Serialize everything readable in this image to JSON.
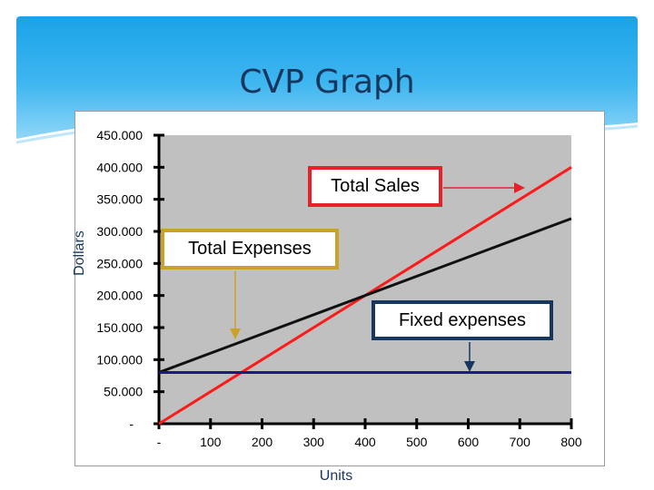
{
  "slide": {
    "title": "CVP Graph"
  },
  "colors": {
    "plot_background": "#c0c0c0",
    "total_sales": "#ff1a1a",
    "total_expenses": "#111111",
    "fixed_expenses": "#1a1a80",
    "sales_callout_border": "#e8202a",
    "expenses_callout_border": "#c9a227",
    "fixed_callout_border": "#17375e",
    "expenses_arrow": "#c9a227",
    "fixed_arrow": "#17375e",
    "sales_arrow": "#e8202a"
  },
  "chart_data": {
    "type": "line",
    "xlabel": "Units",
    "ylabel": "Dollars",
    "xlim": [
      0,
      800
    ],
    "ylim": [
      0,
      450000
    ],
    "x_ticks": [
      "-",
      "100",
      "200",
      "300",
      "400",
      "500",
      "600",
      "700",
      "800"
    ],
    "y_ticks": [
      "-",
      "50.000",
      "100.000",
      "150.000",
      "200.000",
      "250.000",
      "300.000",
      "350.000",
      "400.000",
      "450.000"
    ],
    "grid": false,
    "series": [
      {
        "name": "Total Sales",
        "x": [
          0,
          800
        ],
        "y": [
          0,
          400000
        ]
      },
      {
        "name": "Total Expenses",
        "x": [
          0,
          800
        ],
        "y": [
          80000,
          320000
        ]
      },
      {
        "name": "Fixed expenses",
        "x": [
          0,
          800
        ],
        "y": [
          80000,
          80000
        ]
      }
    ],
    "annotations": [
      {
        "text": "Total Sales",
        "series": "Total Sales"
      },
      {
        "text": "Total Expenses",
        "series": "Total Expenses"
      },
      {
        "text": "Fixed expenses",
        "series": "Fixed expenses"
      }
    ]
  }
}
